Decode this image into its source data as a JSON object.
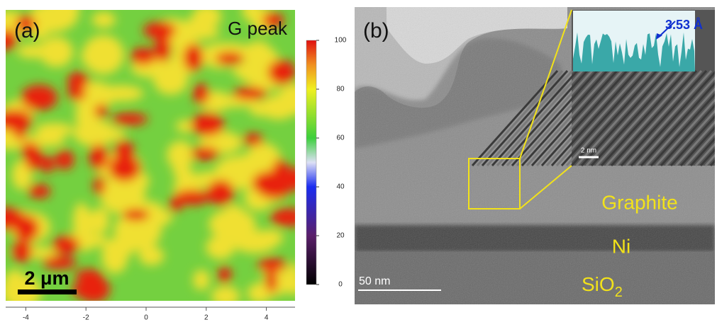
{
  "panel_a": {
    "label": "(a)",
    "title": "G peak",
    "scale_bar": "2 μm",
    "colorbar": {
      "lim": [
        0,
        100
      ],
      "ticks": [
        0,
        20,
        40,
        60,
        80,
        100
      ]
    },
    "x_axis": {
      "lim": [
        -5,
        5
      ],
      "ticks": [
        -4,
        -2,
        0,
        2,
        4
      ]
    }
  },
  "panel_b": {
    "label": "(b)",
    "inset_annotation": "3.53 Å",
    "inset_scale_bar": "2 nm",
    "layers": [
      {
        "text": "Graphite"
      },
      {
        "text": "Ni"
      },
      {
        "text": "SiO",
        "sub": "2"
      }
    ],
    "scale_bar": "50 nm"
  }
}
